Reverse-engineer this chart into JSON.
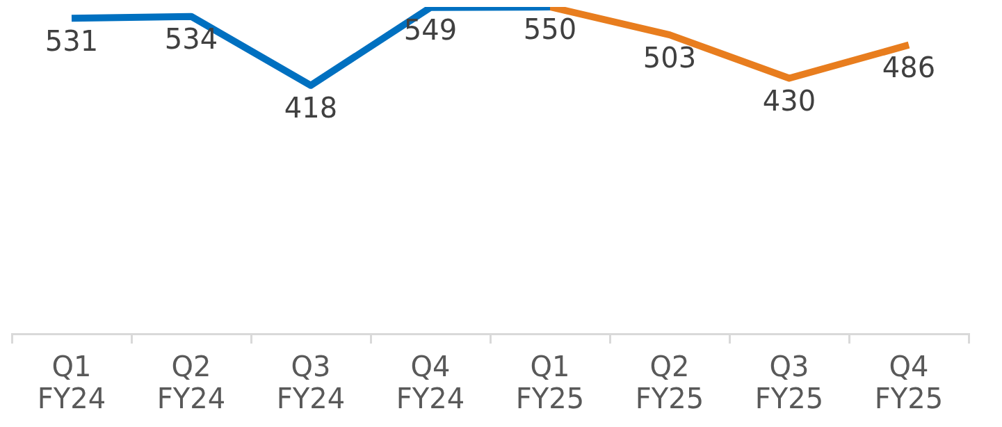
{
  "chart_data": {
    "type": "line",
    "categories": [
      "Q1 FY24",
      "Q2 FY24",
      "Q3 FY24",
      "Q4 FY24",
      "Q1 FY25",
      "Q2 FY25",
      "Q3 FY25",
      "Q4 FY25"
    ],
    "series": [
      {
        "color": "#0070c0",
        "values": [
          531,
          534,
          418,
          549,
          550,
          null,
          null,
          null
        ],
        "value_labels": [
          "531",
          "534",
          "418",
          "549",
          "550",
          null,
          null,
          null
        ]
      },
      {
        "color": "#e87d1e",
        "values": [
          null,
          null,
          null,
          null,
          550,
          503,
          430,
          486
        ],
        "value_labels": [
          null,
          null,
          null,
          null,
          null,
          "503",
          "430",
          "486"
        ]
      }
    ],
    "grid": false,
    "legend": false,
    "marker": "none",
    "line_style": "solid"
  }
}
